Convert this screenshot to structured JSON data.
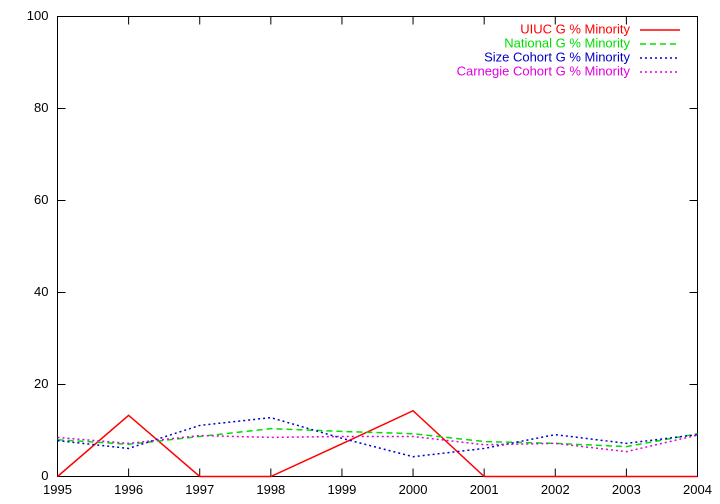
{
  "chart_data": {
    "type": "line",
    "x": [
      1995,
      1996,
      1997,
      1998,
      1999,
      2000,
      2001,
      2002,
      2003,
      2004
    ],
    "xlim": [
      1995,
      2004
    ],
    "xticks": [
      1995,
      1996,
      1997,
      1998,
      1999,
      2000,
      2001,
      2002,
      2003,
      2004
    ],
    "ylim": [
      0,
      100
    ],
    "yticks": [
      0,
      20,
      40,
      60,
      80,
      100
    ],
    "grid": false,
    "legend": "top-right",
    "series": [
      {
        "name": "UIUC G % Minority",
        "color": "#ff0000",
        "line_style": "solid",
        "values": [
          0,
          13.3,
          0,
          0,
          7.1,
          14.3,
          0,
          0,
          0,
          0
        ]
      },
      {
        "name": "National G % Minority",
        "color": "#00e000",
        "line_style": "dashed",
        "values": [
          8,
          7,
          8.7,
          10.4,
          9.8,
          9.3,
          7.6,
          7.2,
          6.5,
          9.3
        ]
      },
      {
        "name": "Size Cohort G % Minority",
        "color": "#0000c8",
        "line_style": "dotted",
        "values": [
          7.8,
          6.1,
          11.1,
          12.8,
          8.3,
          4.3,
          6.1,
          9.1,
          7.2,
          9.1
        ]
      },
      {
        "name": "Carnegie Cohort G % Minority",
        "color": "#e000e0",
        "line_style": "dotted",
        "values": [
          8.5,
          7.2,
          8.9,
          8.5,
          8.7,
          8.7,
          6.9,
          7.2,
          5.4,
          9
        ]
      }
    ]
  }
}
